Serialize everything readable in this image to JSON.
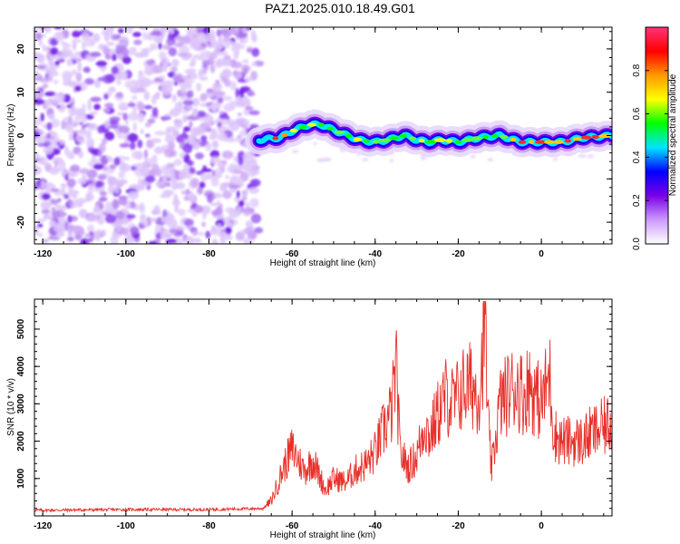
{
  "title": "PAZ1.2025.010.18.49.G01",
  "chart_data": [
    {
      "type": "heatmap",
      "xlabel": "Height of straight line (km)",
      "ylabel": "Frequency (Hz)",
      "xlim": [
        -122,
        17
      ],
      "ylim": [
        -25,
        25
      ],
      "x_ticks": [
        "-120",
        "-100",
        "-80",
        "-60",
        "-40",
        "-20",
        "0"
      ],
      "y_ticks": [
        "-20",
        "-10",
        "0",
        "10",
        "20"
      ],
      "colorbar": {
        "label": "Normalized spectral amplitude",
        "range": [
          0,
          1
        ],
        "ticks": [
          "0.0",
          "0.2",
          "0.4",
          "0.6",
          "0.8"
        ],
        "colors": [
          "#ffffff",
          "#cc99ff",
          "#7a00e6",
          "#0000ff",
          "#00e5ff",
          "#00ff00",
          "#ffff00",
          "#ff9900",
          "#ff0000",
          "#ff3377"
        ]
      },
      "noise_region_x": [
        -122,
        -68
      ],
      "signal_track": {
        "x": [
          -68,
          -63,
          -60,
          -56,
          -53,
          -48,
          -44,
          -40,
          -37,
          -33,
          -30,
          -27,
          -24,
          -20,
          -15,
          -10,
          -5,
          0,
          5,
          10,
          17
        ],
        "freq": [
          -1,
          -0.5,
          1,
          2.5,
          2.5,
          0.5,
          -1,
          -1.5,
          -1,
          0,
          -1,
          -1.5,
          -1,
          -1.5,
          -0.5,
          0,
          -1.5,
          -1.5,
          -1.5,
          -0.5,
          0
        ]
      }
    },
    {
      "type": "line",
      "xlabel": "Height of straight line (km)",
      "ylabel": "SNR (10 * v/v)",
      "xlim": [
        -122,
        17
      ],
      "ylim": [
        0,
        5800
      ],
      "x_ticks": [
        "-120",
        "-100",
        "-80",
        "-60",
        "-40",
        "-20",
        "0"
      ],
      "y_ticks": [
        "1000",
        "2000",
        "3000",
        "4000",
        "5000"
      ],
      "color": "#e8302a",
      "series": [
        {
          "x": [
            -122,
            -100,
            -80,
            -67,
            -65,
            -62,
            -60,
            -57,
            -55,
            -52,
            -50,
            -47,
            -45,
            -42,
            -40,
            -38,
            -36,
            -35,
            -34,
            -32,
            -30,
            -28,
            -27,
            -25,
            -23,
            -21,
            -19,
            -17,
            -15,
            -14,
            -13.5,
            -13,
            -12,
            -10,
            -8,
            -6,
            -4,
            -3,
            -2,
            0,
            2,
            3,
            5,
            8,
            10,
            12,
            14,
            17
          ],
          "values": [
            150,
            170,
            170,
            200,
            400,
            1300,
            1800,
            1200,
            1500,
            700,
            1000,
            900,
            1200,
            1400,
            1700,
            2300,
            2800,
            4000,
            1700,
            1300,
            1600,
            2500,
            2100,
            2700,
            3200,
            3000,
            3400,
            3500,
            3300,
            4500,
            5700,
            2800,
            1200,
            3000,
            3300,
            3500,
            3200,
            3600,
            3300,
            3000,
            3800,
            2200,
            2000,
            2000,
            2000,
            2200,
            2300,
            2500
          ]
        }
      ]
    }
  ]
}
